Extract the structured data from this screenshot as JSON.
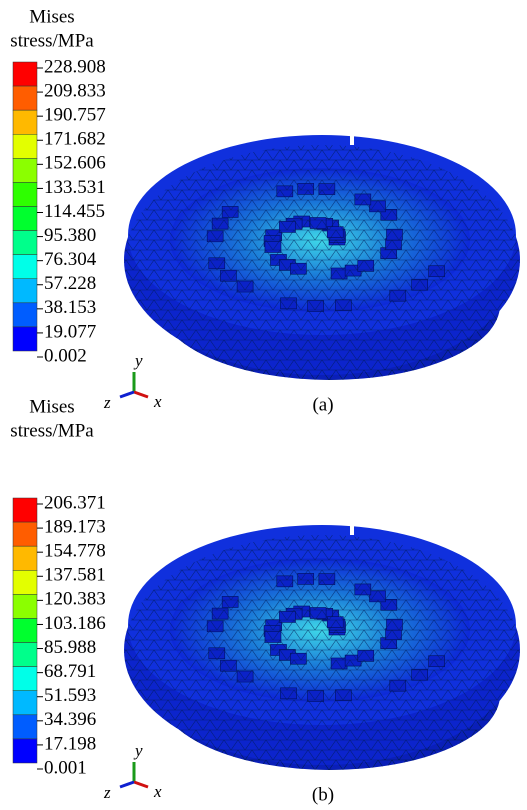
{
  "panels": [
    {
      "legend": {
        "title": [
          "Mises",
          "stress/MPa"
        ],
        "labels": [
          "228.908",
          "209.833",
          "190.757",
          "171.682",
          "152.606",
          "133.531",
          "114.455",
          "95.380",
          "76.304",
          "57.228",
          "38.153",
          "19.077",
          "0.002"
        ]
      },
      "axes": {
        "y": "y",
        "z": "z",
        "x": "x"
      },
      "caption": "(a)"
    },
    {
      "legend": {
        "title": [
          "Mises",
          "stress/MPa"
        ],
        "labels": [
          "206.371",
          "189.173",
          "154.778",
          "137.581",
          "120.383",
          "103.186",
          "85.988",
          "68.791",
          "51.593",
          "34.396",
          "17.198",
          "0.001"
        ]
      },
      "axes": {
        "y": "y",
        "z": "z",
        "x": "x"
      },
      "caption": "(b)"
    }
  ]
}
